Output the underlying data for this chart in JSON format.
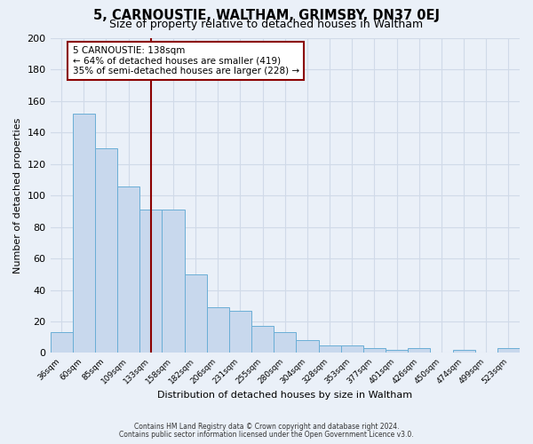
{
  "title": "5, CARNOUSTIE, WALTHAM, GRIMSBY, DN37 0EJ",
  "subtitle": "Size of property relative to detached houses in Waltham",
  "xlabel": "Distribution of detached houses by size in Waltham",
  "ylabel": "Number of detached properties",
  "bar_labels": [
    "36sqm",
    "60sqm",
    "85sqm",
    "109sqm",
    "133sqm",
    "158sqm",
    "182sqm",
    "206sqm",
    "231sqm",
    "255sqm",
    "280sqm",
    "304sqm",
    "328sqm",
    "353sqm",
    "377sqm",
    "401sqm",
    "426sqm",
    "450sqm",
    "474sqm",
    "499sqm",
    "523sqm"
  ],
  "bar_values": [
    13,
    152,
    130,
    106,
    91,
    91,
    50,
    29,
    27,
    17,
    13,
    8,
    5,
    5,
    3,
    2,
    3,
    0,
    2,
    0,
    3
  ],
  "bar_color": "#c8d8ed",
  "bar_edge_color": "#6aaed6",
  "ylim": [
    0,
    200
  ],
  "yticks": [
    0,
    20,
    40,
    60,
    80,
    100,
    120,
    140,
    160,
    180,
    200
  ],
  "red_line_x": 4.0,
  "annotation_text": "5 CARNOUSTIE: 138sqm\n← 64% of detached houses are smaller (419)\n35% of semi-detached houses are larger (228) →",
  "footnote1": "Contains HM Land Registry data © Crown copyright and database right 2024.",
  "footnote2": "Contains public sector information licensed under the Open Government Licence v3.0.",
  "bg_color": "#eaf0f8",
  "grid_color": "#d0dae8",
  "title_fontsize": 10.5,
  "subtitle_fontsize": 9,
  "axis_label_fontsize": 8,
  "ylabel_fontsize": 8
}
